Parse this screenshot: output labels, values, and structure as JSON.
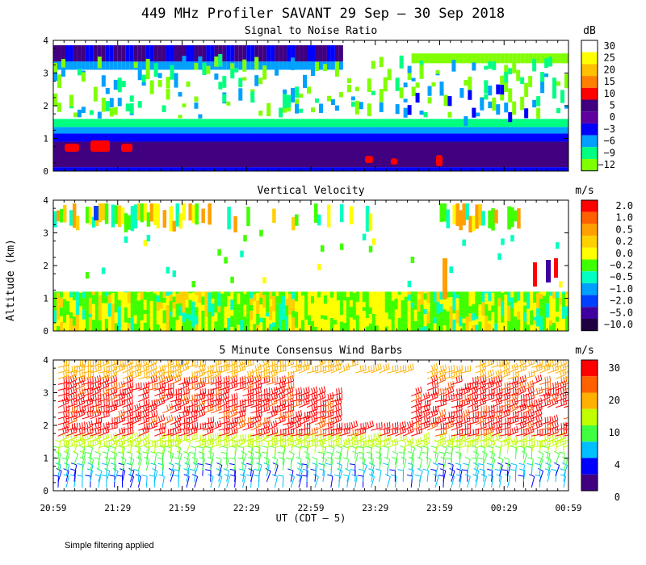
{
  "title": "449 MHz Profiler SAVANT 29 Sep – 30 Sep 2018",
  "y_axis_label": "Altitude (km)",
  "x_axis_label": "UT  (CDT – 5)",
  "footnote": "Simple filtering applied",
  "time_ticks": [
    "20:59",
    "21:29",
    "21:59",
    "22:29",
    "22:59",
    "23:29",
    "23:59",
    "00:29",
    "00:59"
  ],
  "altitude_ticks": [
    "0",
    "1",
    "2",
    "3",
    "4"
  ],
  "chart_data": [
    {
      "type": "heatmap",
      "title": "Signal to Noise Ratio",
      "units": "dB",
      "colorbar_labels": [
        "30",
        "25",
        "20",
        "15",
        "10",
        "5",
        "0",
        "−3",
        "−6",
        "−9",
        "−12"
      ],
      "colorbar_colors": [
        "#ffffff",
        "#ffff00",
        "#ffc000",
        "#ff8000",
        "#ff0000",
        "#400080",
        "#6000a0",
        "#0000ff",
        "#00a0ff",
        "#00ff80",
        "#80ff00"
      ],
      "x_range": [
        "20:59",
        "00:59"
      ],
      "ylim": [
        0,
        4
      ]
    },
    {
      "type": "heatmap",
      "title": "Vertical Velocity",
      "units": "m/s",
      "colorbar_labels": [
        "2.0",
        "1.0",
        "0.5",
        "0.2",
        "0.0",
        "−0.2",
        "−0.5",
        "−1.0",
        "−2.0",
        "−5.0",
        "−10.0"
      ],
      "colorbar_colors": [
        "#ff0000",
        "#ff6000",
        "#ffa000",
        "#ffd000",
        "#ffff00",
        "#40ff00",
        "#00ffc0",
        "#00a0ff",
        "#0040ff",
        "#4000a0",
        "#200040"
      ],
      "x_range": [
        "20:59",
        "00:59"
      ],
      "ylim": [
        0,
        4
      ]
    },
    {
      "type": "wind-barbs",
      "title": "5 Minute Consensus Wind Barbs",
      "units": "m/s",
      "colorbar_labels": [
        "30",
        "20",
        "10",
        "4",
        "0"
      ],
      "colorbar_colors": [
        "#ff0000",
        "#ff6000",
        "#ffb000",
        "#c0ff00",
        "#40ff40",
        "#00c0ff",
        "#0000ff",
        "#400080"
      ],
      "x_range": [
        "20:59",
        "00:59"
      ],
      "ylim": [
        0,
        4
      ]
    }
  ]
}
